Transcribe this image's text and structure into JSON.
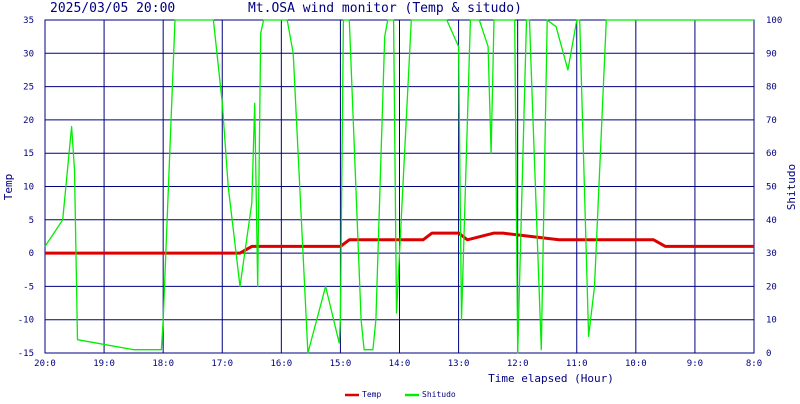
{
  "header": {
    "timestamp": "2025/03/05 20:00",
    "title": "Mt.OSA wind monitor (Temp & situdo)"
  },
  "chart_data": {
    "type": "line",
    "title": "Mt.OSA wind monitor (Temp & situdo)",
    "xlabel": "Time elapsed (Hour)",
    "ylabel_left": "Temp",
    "ylabel_right": "Shitudo",
    "ylim_left": [
      -15,
      35
    ],
    "ylim_right": [
      0,
      100
    ],
    "xlim_hours": [
      0,
      12
    ],
    "x_tick_labels": [
      "20:0",
      "19:0",
      "18:0",
      "17:0",
      "16:0",
      "15:0",
      "14:0",
      "13:0",
      "12:0",
      "11:0",
      "10:0",
      "9:0",
      "8:0"
    ],
    "y_left_ticks": [
      "35",
      "30",
      "25",
      "20",
      "15",
      "10",
      "5",
      "0",
      "-5",
      "-10",
      "-15"
    ],
    "y_right_ticks": [
      "100",
      "90",
      "80",
      "70",
      "60",
      "50",
      "40",
      "30",
      "20",
      "10",
      "0"
    ],
    "grid": true,
    "legend_position": "bottom-center",
    "series": [
      {
        "name": "Temp",
        "axis": "left",
        "color": "#dd0000",
        "x": [
          0,
          3.3,
          3.5,
          5,
          5.15,
          6.4,
          6.55,
          7,
          7.15,
          7.6,
          7.75,
          8.7,
          10.3,
          10.5,
          12
        ],
        "y": [
          0,
          0,
          1,
          1,
          2,
          2,
          3,
          3,
          2,
          3,
          3,
          2,
          2,
          1,
          1
        ]
      },
      {
        "name": "Shitudo",
        "axis": "right",
        "color": "#00ee00",
        "x": [
          0,
          0.15,
          0.3,
          0.45,
          0.5,
          0.55,
          1.5,
          1.97,
          2,
          2.2,
          2.85,
          3.0,
          3.1,
          3.3,
          3.5,
          3.55,
          3.6,
          3.65,
          3.7,
          3.85,
          4.1,
          4.2,
          4.45,
          4.75,
          4.98,
          5.0,
          5.05,
          5.15,
          5.35,
          5.4,
          5.55,
          5.6,
          5.75,
          5.8,
          5.9,
          5.95,
          6.2,
          6.25,
          6.35,
          6.55,
          6.8,
          7.0,
          7.05,
          7.2,
          7.35,
          7.5,
          7.55,
          7.6,
          7.8,
          7.95,
          8.0,
          8.15,
          8.2,
          8.25,
          8.4,
          8.5,
          8.65,
          8.85,
          9.0,
          9.05,
          9.2,
          9.3,
          9.5,
          12
        ],
        "y": [
          32,
          36,
          40,
          68,
          55,
          4,
          1,
          1,
          10,
          100,
          100,
          75,
          50,
          20,
          45,
          75,
          20,
          96,
          100,
          100,
          100,
          90,
          0,
          20,
          3,
          10,
          100,
          100,
          10,
          1,
          1,
          10,
          95,
          100,
          100,
          12,
          100,
          100,
          100,
          100,
          100,
          92,
          10,
          100,
          100,
          92,
          60,
          100,
          100,
          100,
          0,
          100,
          100,
          75,
          1,
          100,
          98,
          85,
          100,
          100,
          5,
          20,
          100,
          100
        ]
      }
    ]
  }
}
